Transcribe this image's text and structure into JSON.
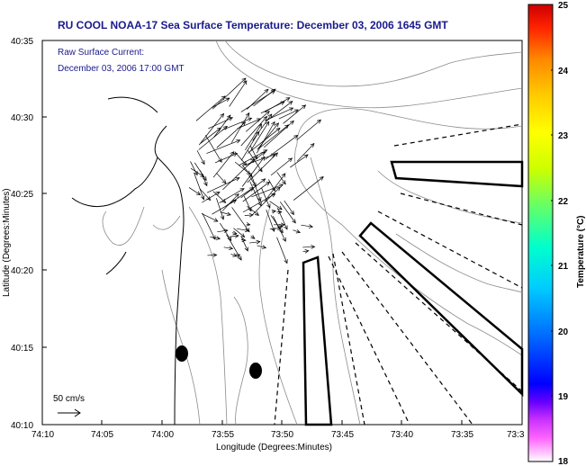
{
  "title": "RU COOL  NOAA-17  Sea Surface Temperature:  December 03, 2006 1645 GMT",
  "current_label": "Raw Surface Current:",
  "current_time": "December 03, 2006 17:00 GMT",
  "scale_label": "50 cm/s",
  "axes": {
    "xlabel": "Longitude (Degrees:Minutes)",
    "ylabel": "Latitude (Degrees:Minutes)",
    "xticks": [
      "74:10",
      "74:05",
      "74:00",
      "73:55",
      "73:50",
      "73:45",
      "73:40",
      "73:35",
      "73:3"
    ],
    "yticks": [
      "40:35",
      "40:30",
      "40:25",
      "40:20",
      "40:15",
      "40:10"
    ]
  },
  "colorbar": {
    "label": "Temperature (°C)",
    "ticks": [
      "25",
      "24",
      "23",
      "22",
      "21",
      "20",
      "19",
      "18"
    ],
    "range": [
      18,
      25
    ]
  },
  "colors": {
    "title": "#1a1a8c",
    "land_contour": "#000000",
    "bathymetry": "#8c8c8c"
  }
}
